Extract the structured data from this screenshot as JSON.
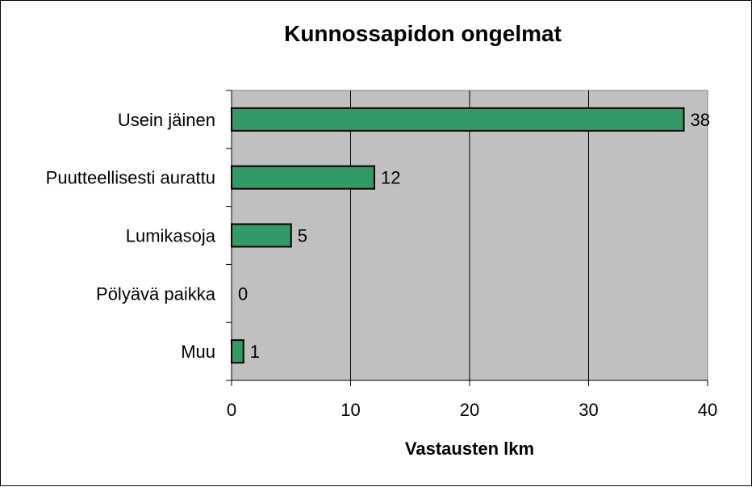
{
  "chart_data": {
    "type": "bar",
    "orientation": "horizontal",
    "title": "Kunnossapidon ongelmat",
    "xlabel": "Vastausten lkm",
    "ylabel": "",
    "categories": [
      "Usein jäinen",
      "Puutteellisesti aurattu",
      "Lumikasoja",
      "Pölyävä paikka",
      "Muu"
    ],
    "values": [
      38,
      12,
      5,
      0,
      1
    ],
    "xlim": [
      0,
      40
    ],
    "xticks": [
      0,
      10,
      20,
      30,
      40
    ],
    "grid": true,
    "legend": "none",
    "bar_color": "#339966",
    "plot_background": "#c0c0c0"
  }
}
